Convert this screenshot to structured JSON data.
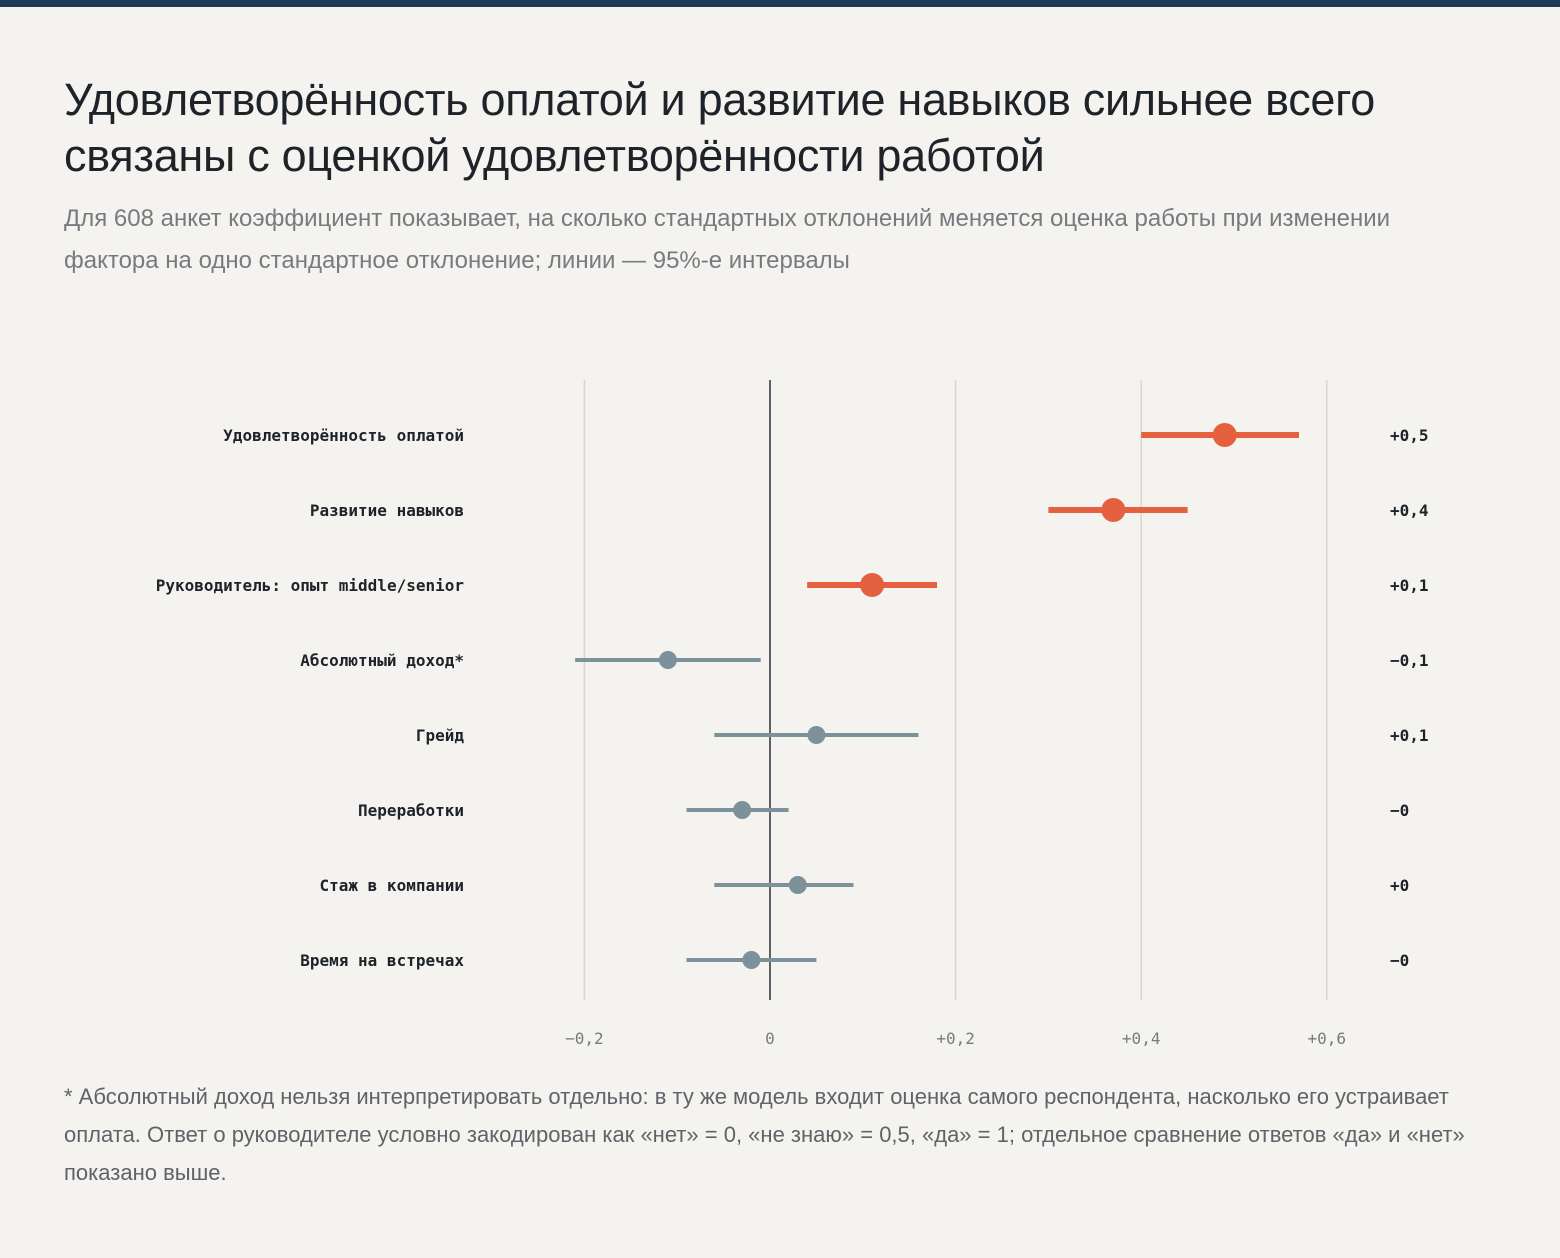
{
  "title": "Удовлетворённость оплатой и развитие навыков сильнее всего связаны с оценкой удовлетворённости работой",
  "subtitle": "Для 608 анкет коэффициент показывает, на сколько стандартных отклонений меняется оценка работы при изменении фактора на одно стандартное отклонение; линии — 95%-е интервалы",
  "footnote": "* Абсолютный доход нельзя интерпретировать отдельно: в ту же модель входит оценка самого респондента, насколько его устраивает оплата. Ответ о руководителе условно закодирован как «нет» = 0, «не знаю» = 0,5, «да» = 1; отдельное сравнение ответов «да» и «нет» показано выше.",
  "colors": {
    "highlight": "#e5603f",
    "muted": "#7d919b",
    "zero_line": "#5a6166",
    "grid": "#d8d6d1",
    "label": "#1d2328",
    "tick": "#767b80",
    "top_rule": "#1d3c55"
  },
  "chart_data": {
    "type": "scatter",
    "style": "coefficient dot plot with 95% confidence intervals",
    "xlim": [
      -0.23,
      0.66
    ],
    "x_ticks": [
      -0.2,
      0,
      0.2,
      0.4,
      0.6
    ],
    "x_tick_labels": [
      "−0,2",
      "0",
      "+0,2",
      "+0,4",
      "+0,6"
    ],
    "grid": true,
    "zero_line": true,
    "rows": [
      {
        "label": "Удовлетворённость оплатой",
        "estimate": 0.49,
        "ci": [
          0.4,
          0.57
        ],
        "value_label": "+0,5",
        "highlight": true
      },
      {
        "label": "Развитие навыков",
        "estimate": 0.37,
        "ci": [
          0.3,
          0.45
        ],
        "value_label": "+0,4",
        "highlight": true
      },
      {
        "label": "Руководитель: опыт middle/senior",
        "estimate": 0.11,
        "ci": [
          0.04,
          0.18
        ],
        "value_label": "+0,1",
        "highlight": true
      },
      {
        "label": "Абсолютный доход*",
        "estimate": -0.11,
        "ci": [
          -0.21,
          -0.01
        ],
        "value_label": "−0,1",
        "highlight": false
      },
      {
        "label": "Грейд",
        "estimate": 0.05,
        "ci": [
          -0.06,
          0.16
        ],
        "value_label": "+0,1",
        "highlight": false
      },
      {
        "label": "Переработки",
        "estimate": -0.03,
        "ci": [
          -0.09,
          0.02
        ],
        "value_label": "−0",
        "highlight": false
      },
      {
        "label": "Стаж в компании",
        "estimate": 0.03,
        "ci": [
          -0.06,
          0.09
        ],
        "value_label": "+0",
        "highlight": false
      },
      {
        "label": "Время на встречах",
        "estimate": -0.02,
        "ci": [
          -0.09,
          0.05
        ],
        "value_label": "−0",
        "highlight": false
      }
    ]
  }
}
